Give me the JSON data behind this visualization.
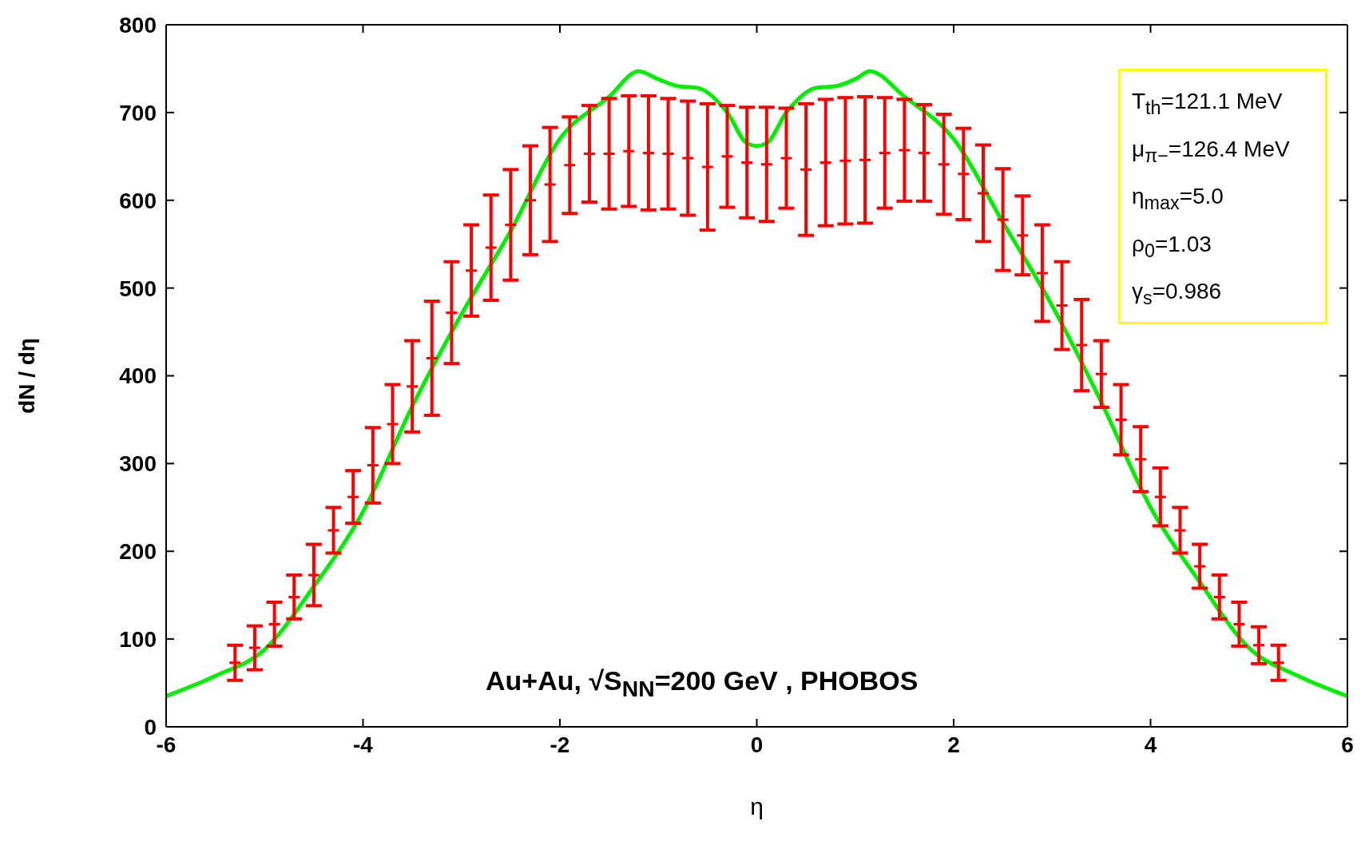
{
  "chart_data": {
    "type": "scatter",
    "xlabel": "η",
    "ylabel": "dN / dη",
    "xlim": [
      -6,
      6
    ],
    "xticks": [
      -6,
      -4,
      -2,
      0,
      2,
      4,
      6
    ],
    "ylim": [
      0,
      800
    ],
    "yticks": [
      0,
      100,
      200,
      300,
      400,
      500,
      600,
      700,
      800
    ],
    "legend": false,
    "annotations": [
      "T$_{th}$=121.1  MeV",
      "μ$_{π−}$=126.4  MeV",
      "η$_{max}$=5.0",
      "ρ$_{0}$=1.03",
      "γ$_{s}$=0.986",
      "Au+Au, √S$_{NN}$=200 GeV , PHOBOS"
    ],
    "series": [
      {
        "color": "#ff0000",
        "marker": "cross",
        "x": [
          -5.3,
          -5.1,
          -4.9,
          -4.7,
          -4.5,
          -4.3,
          -4.1,
          -3.9,
          -3.7,
          -3.5,
          -3.3,
          -3.1,
          -2.9,
          -2.7,
          -2.5,
          -2.3,
          -2.1,
          -1.9,
          -1.7,
          -1.5,
          -1.3,
          -1.1,
          -0.9,
          -0.7,
          -0.5,
          -0.3,
          -0.1,
          0.1,
          0.3,
          0.5,
          0.7,
          0.9,
          1.1,
          1.3,
          1.5,
          1.7,
          1.9,
          2.1,
          2.3,
          2.5,
          2.7,
          2.9,
          3.1,
          3.3,
          3.5,
          3.7,
          3.9,
          4.1,
          4.3,
          4.5,
          4.7,
          4.9,
          5.1,
          5.3
        ],
        "values": [
          73,
          90,
          117,
          148,
          173,
          224,
          262,
          298,
          345,
          388,
          420,
          472,
          520,
          546,
          572,
          600,
          618,
          640,
          653,
          653,
          656,
          654,
          653,
          648,
          638,
          650,
          643,
          641,
          648,
          635,
          643,
          645,
          646,
          654,
          657,
          654,
          641,
          630,
          608,
          578,
          560,
          517,
          480,
          435,
          402,
          350,
          305,
          262,
          224,
          183,
          148,
          117,
          93,
          73
        ],
        "errors": [
          20,
          25,
          25,
          25,
          35,
          26,
          30,
          43,
          45,
          52,
          65,
          58,
          52,
          60,
          63,
          62,
          65,
          55,
          55,
          63,
          63,
          65,
          63,
          65,
          72,
          58,
          63,
          65,
          57,
          75,
          72,
          72,
          72,
          63,
          58,
          55,
          57,
          52,
          55,
          58,
          45,
          55,
          50,
          52,
          38,
          40,
          37,
          33,
          26,
          25,
          25,
          25,
          21,
          20
        ]
      },
      {
        "type": "line",
        "color": "#00ee00",
        "line_style": "solid",
        "x": [
          -6,
          -5.5,
          -5,
          -4.5,
          -4,
          -3.5,
          -3,
          -2.5,
          -2,
          -1.5,
          -1.2,
          -1,
          -0.8,
          -0.6,
          -0.3,
          -0.1,
          0,
          0.1,
          0.3,
          0.6,
          0.8,
          1,
          1.15,
          1.5,
          2,
          2.5,
          3,
          3.5,
          4,
          4.5,
          5,
          5.5,
          6
        ],
        "values": [
          35,
          58,
          88,
          160,
          245,
          365,
          470,
          565,
          670,
          718,
          747,
          738,
          730,
          728,
          700,
          665,
          662,
          665,
          700,
          728,
          730,
          738,
          747,
          718,
          670,
          575,
          480,
          370,
          250,
          165,
          90,
          58,
          35
        ]
      }
    ]
  }
}
